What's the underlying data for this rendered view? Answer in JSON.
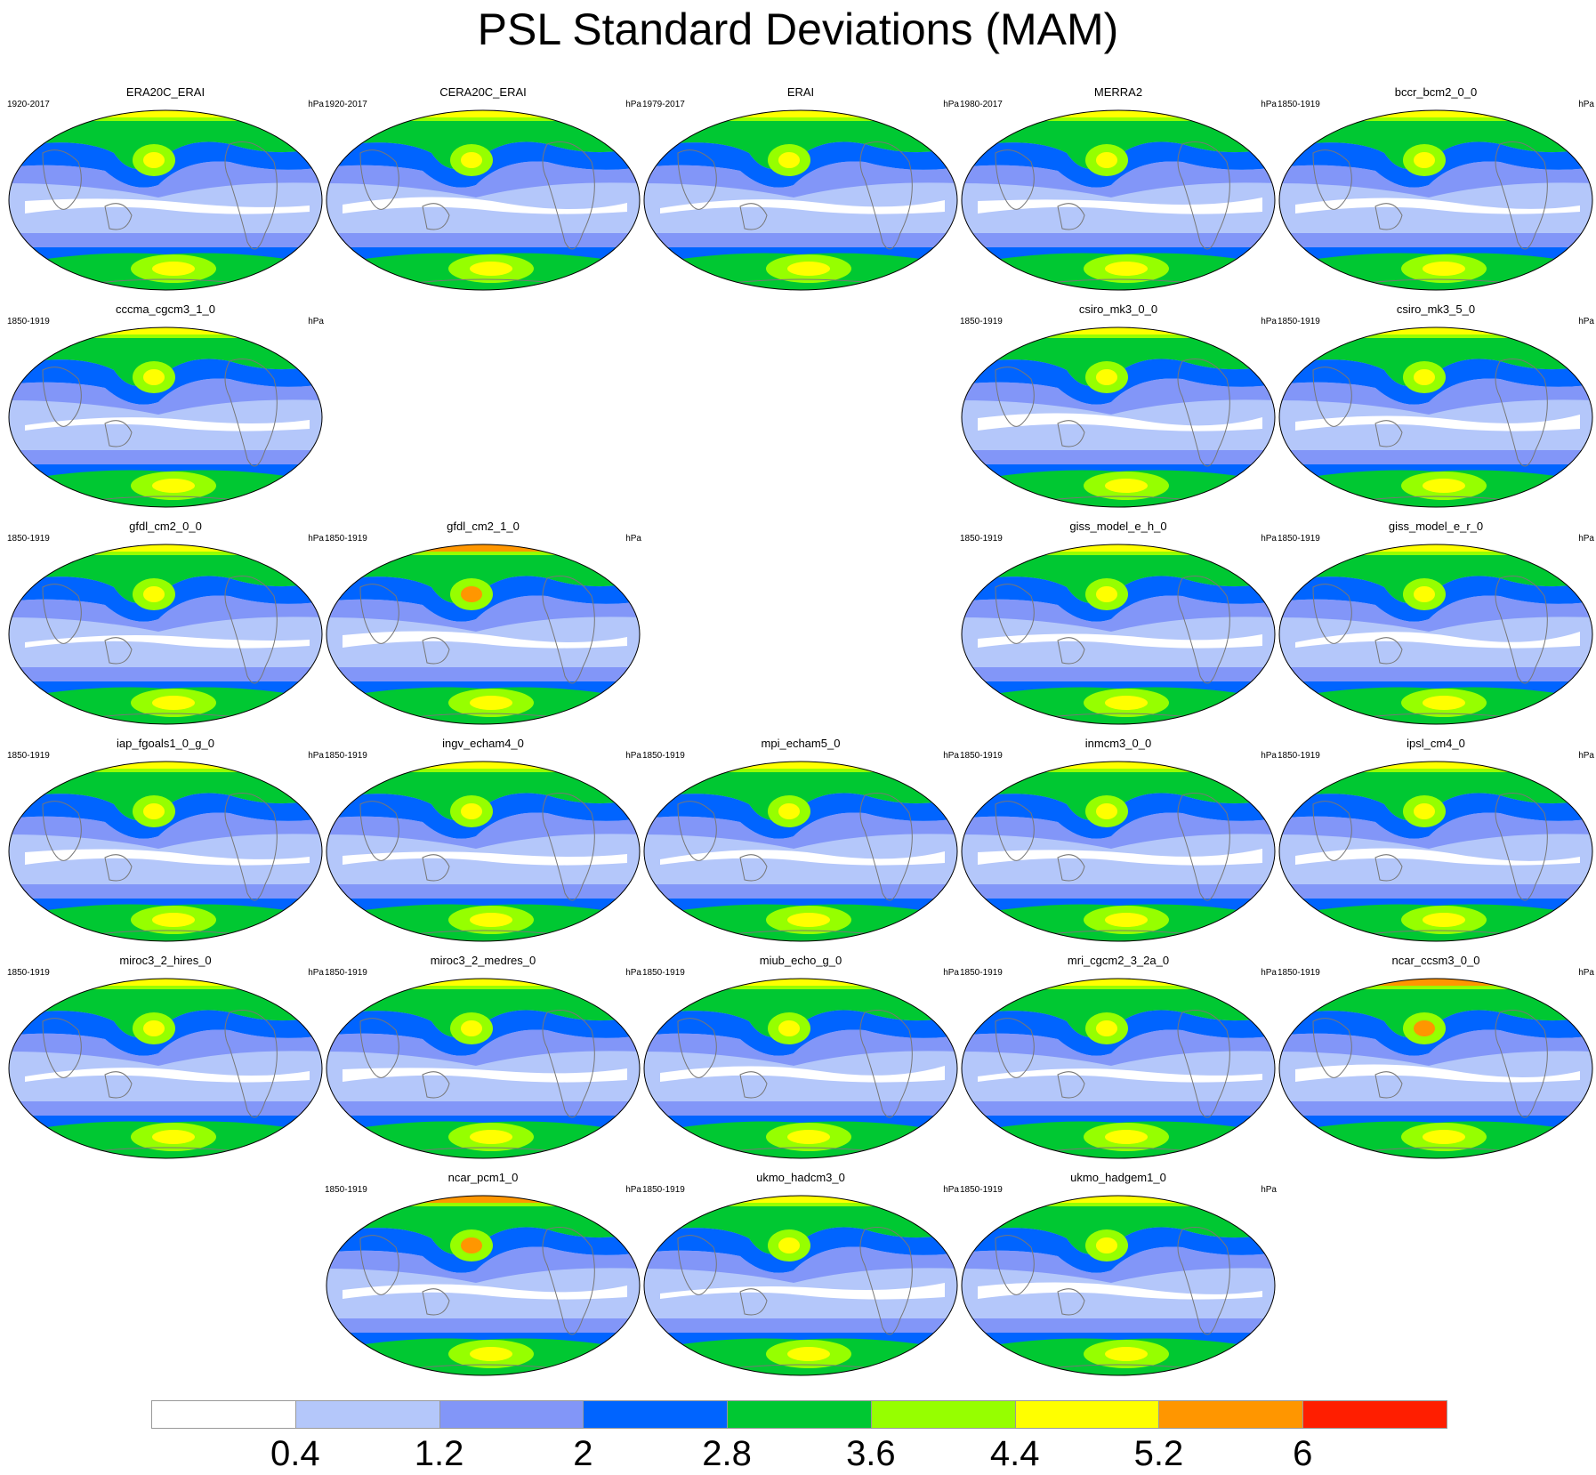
{
  "title": "PSL Standard Deviations (MAM)",
  "units": "hPa",
  "panels": [
    {
      "name": "ERA20C_ERAI",
      "period": "1920-2017",
      "row": 0,
      "col": 0
    },
    {
      "name": "CERA20C_ERAI",
      "period": "1920-2017",
      "row": 0,
      "col": 1
    },
    {
      "name": "ERAI",
      "period": "1979-2017",
      "row": 0,
      "col": 2
    },
    {
      "name": "MERRA2",
      "period": "1980-2017",
      "row": 0,
      "col": 3
    },
    {
      "name": "bccr_bcm2_0_0",
      "period": "1850-1919",
      "row": 0,
      "col": 4
    },
    {
      "name": "cccma_cgcm3_1_0",
      "period": "1850-1919",
      "row": 1,
      "col": 0
    },
    {
      "name": "csiro_mk3_0_0",
      "period": "1850-1919",
      "row": 1,
      "col": 3
    },
    {
      "name": "csiro_mk3_5_0",
      "period": "1850-1919",
      "row": 1,
      "col": 4
    },
    {
      "name": "gfdl_cm2_0_0",
      "period": "1850-1919",
      "row": 2,
      "col": 0
    },
    {
      "name": "gfdl_cm2_1_0",
      "period": "1850-1919",
      "row": 2,
      "col": 1
    },
    {
      "name": "giss_model_e_h_0",
      "period": "1850-1919",
      "row": 2,
      "col": 3
    },
    {
      "name": "giss_model_e_r_0",
      "period": "1850-1919",
      "row": 2,
      "col": 4
    },
    {
      "name": "iap_fgoals1_0_g_0",
      "period": "1850-1919",
      "row": 3,
      "col": 0
    },
    {
      "name": "ingv_echam4_0",
      "period": "1850-1919",
      "row": 3,
      "col": 1
    },
    {
      "name": "mpi_echam5_0",
      "period": "1850-1919",
      "row": 3,
      "col": 2
    },
    {
      "name": "inmcm3_0_0",
      "period": "1850-1919",
      "row": 3,
      "col": 3
    },
    {
      "name": "ipsl_cm4_0",
      "period": "1850-1919",
      "row": 3,
      "col": 4
    },
    {
      "name": "miroc3_2_hires_0",
      "period": "1850-1919",
      "row": 4,
      "col": 0
    },
    {
      "name": "miroc3_2_medres_0",
      "period": "1850-1919",
      "row": 4,
      "col": 1
    },
    {
      "name": "miub_echo_g_0",
      "period": "1850-1919",
      "row": 4,
      "col": 2
    },
    {
      "name": "mri_cgcm2_3_2a_0",
      "period": "1850-1919",
      "row": 4,
      "col": 3
    },
    {
      "name": "ncar_ccsm3_0_0",
      "period": "1850-1919",
      "row": 4,
      "col": 4
    },
    {
      "name": "ncar_pcm1_0",
      "period": "1850-1919",
      "row": 5,
      "col": 1
    },
    {
      "name": "ukmo_hadcm3_0",
      "period": "1850-1919",
      "row": 5,
      "col": 2
    },
    {
      "name": "ukmo_hadgem1_0",
      "period": "1850-1919",
      "row": 5,
      "col": 3
    }
  ],
  "colorbar": {
    "colors": [
      "#ffffff",
      "#b4c7fa",
      "#8296f8",
      "#0064ff",
      "#00c832",
      "#96ff00",
      "#ffff00",
      "#ff9600",
      "#ff1e00"
    ],
    "ticks": [
      "0.4",
      "1.2",
      "2",
      "2.8",
      "3.6",
      "4.4",
      "5.2",
      "6"
    ]
  }
}
